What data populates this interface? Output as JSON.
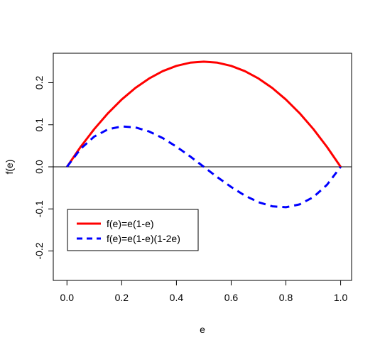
{
  "chart_data": {
    "type": "line",
    "title": "",
    "xlabel": "e",
    "ylabel": "f(e)",
    "xlim": [
      -0.05,
      1.04
    ],
    "ylim": [
      -0.27,
      0.27
    ],
    "x_ticks": [
      "0.0",
      "0.2",
      "0.4",
      "0.6",
      "0.8",
      "1.0"
    ],
    "y_ticks": [
      "-0.2",
      "-0.1",
      "0.0",
      "0.1",
      "0.2"
    ],
    "reference_line": {
      "y": 0,
      "color": "#000000"
    },
    "grid": false,
    "legend_position": "bottom-left",
    "x": [
      0,
      0.05,
      0.1,
      0.15,
      0.2,
      0.25,
      0.3,
      0.35,
      0.4,
      0.45,
      0.5,
      0.55,
      0.6,
      0.65,
      0.7,
      0.75,
      0.8,
      0.85,
      0.9,
      0.95,
      1.0
    ],
    "series": [
      {
        "name": "f(e)=e(1-e)",
        "color": "#ff0000",
        "style": "solid",
        "values": [
          0,
          0.0475,
          0.09,
          0.1275,
          0.16,
          0.1875,
          0.21,
          0.2275,
          0.24,
          0.2475,
          0.25,
          0.2475,
          0.24,
          0.2275,
          0.21,
          0.1875,
          0.16,
          0.1275,
          0.09,
          0.0475,
          0
        ]
      },
      {
        "name": "f(e)=e(1-e)(1-2e)",
        "color": "#0000ff",
        "style": "dashed",
        "values": [
          0,
          0.0428,
          0.072,
          0.0893,
          0.096,
          0.0938,
          0.084,
          0.0683,
          0.048,
          0.0248,
          0,
          -0.0248,
          -0.048,
          -0.0683,
          -0.084,
          -0.0938,
          -0.096,
          -0.0893,
          -0.072,
          -0.0428,
          0
        ]
      }
    ]
  }
}
